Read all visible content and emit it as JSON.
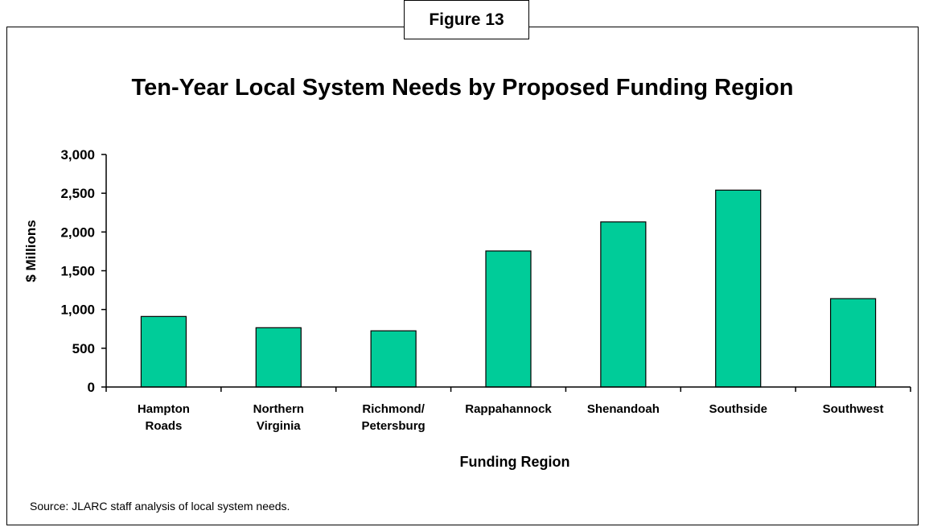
{
  "figure_label": "Figure 13",
  "source_note": "Source:  JLARC staff analysis of local system needs.",
  "colors": {
    "bar_fill": "#00CC99",
    "bar_stroke": "#000000"
  },
  "chart_data": {
    "type": "bar",
    "title": "Ten-Year Local System Needs by Proposed Funding Region",
    "xlabel": "Funding Region",
    "ylabel": "$ Millions",
    "ylim": [
      0,
      3000
    ],
    "yticks": [
      0,
      500,
      1000,
      1500,
      2000,
      2500,
      3000
    ],
    "ytick_labels": [
      "0",
      "500",
      "1,000",
      "1,500",
      "2,000",
      "2,500",
      "3,000"
    ],
    "categories": [
      [
        "Hampton",
        "Roads"
      ],
      [
        "Northern",
        "Virginia"
      ],
      [
        "Richmond/",
        "Petersburg"
      ],
      [
        "Rappahannock"
      ],
      [
        "Shenandoah"
      ],
      [
        "Southside"
      ],
      [
        "Southwest"
      ]
    ],
    "values": [
      910,
      765,
      725,
      1755,
      2130,
      2540,
      1140
    ],
    "grid": false,
    "legend": "none"
  }
}
